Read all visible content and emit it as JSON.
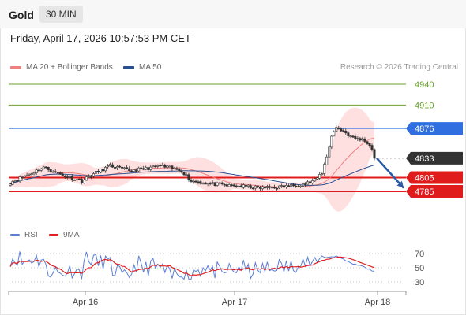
{
  "header": {
    "asset": "Gold",
    "timeframe": "30 MIN"
  },
  "datetime": "Friday, April 17, 2026 10:57:53 PM CET",
  "legend": {
    "ma20": {
      "label": "MA 20 + Bollinger Bands",
      "color": "#f08080"
    },
    "ma50": {
      "label": "MA 50",
      "color": "#2a4f8f"
    },
    "rsi": {
      "label": "RSI",
      "color": "#5b7fd6"
    },
    "ma9": {
      "label": "9MA",
      "color": "#e02020"
    }
  },
  "research": "Research © 2026 Trading Central",
  "chart_data": [
    {
      "type": "candlestick",
      "ylim": [
        4755,
        4950
      ],
      "x_ticks": [
        "Apr 16",
        "Apr 17",
        "Apr 18"
      ],
      "levels": [
        {
          "value": 4940,
          "label": "4940",
          "color": "#6aa12e",
          "style": "thin"
        },
        {
          "value": 4910,
          "label": "4910",
          "color": "#6aa12e",
          "style": "thin"
        },
        {
          "value": 4876,
          "label": "4876",
          "color": "#2f6fe0",
          "style": "resistance"
        },
        {
          "value": 4833,
          "label": "4833",
          "color": "#333333",
          "style": "last"
        },
        {
          "value": 4805,
          "label": "4805",
          "color": "#e01b1b",
          "style": "support"
        },
        {
          "value": 4785,
          "label": "4785",
          "color": "#e01b1b",
          "style": "support"
        }
      ],
      "series": [
        {
          "name": "MA 20 + Bollinger Bands",
          "color": "#f08080"
        },
        {
          "name": "MA 50",
          "color": "#2a4f8f"
        }
      ],
      "projection": {
        "from": 4833,
        "to": 4790,
        "color": "#2a5aa8"
      }
    },
    {
      "type": "line",
      "y_ticks": [
        70,
        50,
        30
      ],
      "series": [
        {
          "name": "RSI",
          "color": "#5b7fd6"
        },
        {
          "name": "9MA",
          "color": "#e02020"
        }
      ]
    }
  ]
}
